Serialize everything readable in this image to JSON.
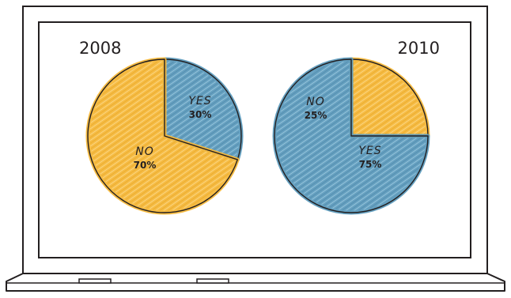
{
  "colors": {
    "yes": "#5d9bbd",
    "no": "#f6b93b",
    "outline": "#231f20"
  },
  "chart_data": [
    {
      "type": "pie",
      "title": "2008",
      "slices": [
        {
          "label": "YES",
          "value": 30,
          "value_label": "30%"
        },
        {
          "label": "NO",
          "value": 70,
          "value_label": "70%"
        }
      ]
    },
    {
      "type": "pie",
      "title": "2010",
      "slices": [
        {
          "label": "NO",
          "value": 25,
          "value_label": "25%"
        },
        {
          "label": "YES",
          "value": 75,
          "value_label": "75%"
        }
      ]
    }
  ]
}
